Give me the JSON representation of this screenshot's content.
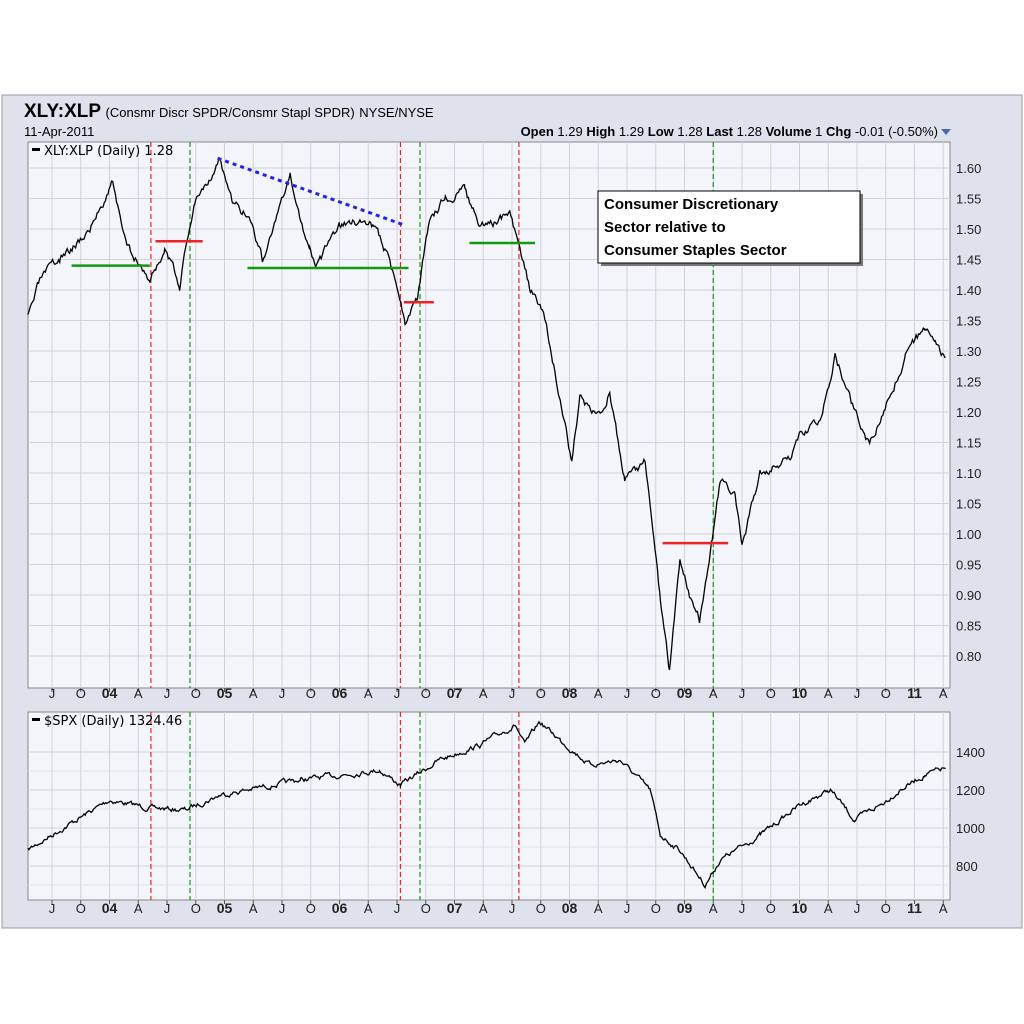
{
  "header": {
    "symbol": "XLY:XLP",
    "description": "(Consmr Discr SPDR/Consmr Stapl SPDR)",
    "exchange": "NYSE/NYSE",
    "date": "11-Apr-2011",
    "quote": [
      {
        "label": "Open",
        "value": "1.29"
      },
      {
        "label": "High",
        "value": "1.29"
      },
      {
        "label": "Low",
        "value": "1.28"
      },
      {
        "label": "Last",
        "value": "1.28"
      },
      {
        "label": "Volume",
        "value": "1"
      },
      {
        "label": "Chg",
        "value": "-0.01 (-0.50%)"
      }
    ],
    "dropdown_icon": "triangle-down"
  },
  "colors": {
    "red_line": "#ee2222",
    "green_line": "#119911",
    "blue_trend": "#2222ee",
    "panel_bg": "#dfe2ec",
    "plot_bg": "#f4f5fa"
  },
  "chart_data": [
    {
      "type": "line",
      "legend": "XLY:XLP (Daily) 1.28",
      "annotation": [
        "Consumer Discretionary",
        "Sector relative to",
        "Consumer Staples Sector"
      ],
      "ylim": [
        0.75,
        1.64
      ],
      "yticks": [
        "1.60",
        "1.55",
        "1.50",
        "1.45",
        "1.40",
        "1.35",
        "1.30",
        "1.25",
        "1.20",
        "1.15",
        "1.10",
        "1.05",
        "1.00",
        "0.95",
        "0.90",
        "0.85",
        "0.80"
      ],
      "points": [
        [
          2003.29,
          1.354
        ],
        [
          2003.4,
          1.416
        ],
        [
          2003.57,
          1.45
        ],
        [
          2003.83,
          1.5
        ],
        [
          2004.03,
          1.58
        ],
        [
          2004.13,
          1.48
        ],
        [
          2004.35,
          1.416
        ],
        [
          2004.48,
          1.466
        ],
        [
          2004.61,
          1.408
        ],
        [
          2004.74,
          1.548
        ],
        [
          2004.96,
          1.613
        ],
        [
          2005.07,
          1.54
        ],
        [
          2005.22,
          1.52
        ],
        [
          2005.33,
          1.45
        ],
        [
          2005.57,
          1.58
        ],
        [
          2005.74,
          1.466
        ],
        [
          2005.81,
          1.44
        ],
        [
          2006.0,
          1.507
        ],
        [
          2006.27,
          1.515
        ],
        [
          2006.44,
          1.45
        ],
        [
          2006.57,
          1.35
        ],
        [
          2006.68,
          1.384
        ],
        [
          2006.79,
          1.523
        ],
        [
          2006.92,
          1.548
        ],
        [
          2007.09,
          1.564
        ],
        [
          2007.22,
          1.5
        ],
        [
          2007.48,
          1.523
        ],
        [
          2007.57,
          1.466
        ],
        [
          2007.66,
          1.4
        ],
        [
          2007.79,
          1.35
        ],
        [
          2007.92,
          1.22
        ],
        [
          2008.02,
          1.12
        ],
        [
          2008.09,
          1.22
        ],
        [
          2008.27,
          1.187
        ],
        [
          2008.35,
          1.236
        ],
        [
          2008.48,
          1.09
        ],
        [
          2008.66,
          1.12
        ],
        [
          2008.79,
          0.892
        ],
        [
          2008.87,
          0.774
        ],
        [
          2008.96,
          0.957
        ],
        [
          2009.05,
          0.892
        ],
        [
          2009.13,
          0.859
        ],
        [
          2009.24,
          0.99
        ],
        [
          2009.31,
          1.09
        ],
        [
          2009.44,
          1.06
        ],
        [
          2009.5,
          0.98
        ],
        [
          2009.66,
          1.105
        ],
        [
          2009.92,
          1.12
        ],
        [
          2010.0,
          1.154
        ],
        [
          2010.18,
          1.187
        ],
        [
          2010.31,
          1.29
        ],
        [
          2010.44,
          1.22
        ],
        [
          2010.61,
          1.146
        ],
        [
          2010.79,
          1.228
        ],
        [
          2010.92,
          1.29
        ],
        [
          2011.09,
          1.34
        ],
        [
          2011.18,
          1.31
        ],
        [
          2011.27,
          1.29
        ]
      ],
      "support_lines": [
        {
          "color": "green",
          "x": [
            2003.67,
            2004.35
          ],
          "y": 1.44
        },
        {
          "color": "red",
          "x": [
            2004.4,
            2004.81
          ],
          "y": 1.48
        },
        {
          "color": "green",
          "x": [
            2005.2,
            2006.6
          ],
          "y": 1.436
        },
        {
          "color": "red",
          "x": [
            2006.56,
            2006.82
          ],
          "y": 1.38
        },
        {
          "color": "green",
          "x": [
            2007.13,
            2007.7
          ],
          "y": 1.477
        },
        {
          "color": "red",
          "x": [
            2008.81,
            2009.38
          ],
          "y": 0.985
        }
      ],
      "trend_line": {
        "x": [
          2004.94,
          2006.57
        ],
        "y": [
          1.616,
          1.506
        ]
      }
    },
    {
      "type": "line",
      "legend": "$SPX (Daily) 1324.46",
      "ylim": [
        650,
        1560
      ],
      "yticks": [
        "1400",
        "1200",
        "1000",
        "800"
      ],
      "points": [
        [
          2003.29,
          884
        ],
        [
          2003.57,
          990
        ],
        [
          2004.0,
          1147
        ],
        [
          2004.35,
          1105
        ],
        [
          2004.66,
          1095
        ],
        [
          2004.96,
          1174
        ],
        [
          2005.66,
          1253
        ],
        [
          2006.35,
          1305
        ],
        [
          2006.53,
          1226
        ],
        [
          2006.87,
          1358
        ],
        [
          2007.22,
          1437
        ],
        [
          2007.53,
          1542
        ],
        [
          2007.61,
          1437
        ],
        [
          2007.74,
          1558
        ],
        [
          2007.92,
          1463
        ],
        [
          2008.18,
          1332
        ],
        [
          2008.44,
          1358
        ],
        [
          2008.7,
          1200
        ],
        [
          2008.79,
          963
        ],
        [
          2008.96,
          884
        ],
        [
          2009.18,
          700
        ],
        [
          2009.31,
          832
        ],
        [
          2009.66,
          963
        ],
        [
          2010.0,
          1121
        ],
        [
          2010.27,
          1200
        ],
        [
          2010.48,
          1042
        ],
        [
          2010.7,
          1121
        ],
        [
          2010.87,
          1200
        ],
        [
          2011.09,
          1279
        ],
        [
          2011.27,
          1316
        ]
      ]
    }
  ],
  "x_axis": {
    "labels": [
      "J",
      "O",
      "04",
      "A",
      "J",
      "O",
      "05",
      "A",
      "J",
      "O",
      "06",
      "A",
      "J",
      "O",
      "07",
      "A",
      "J",
      "O",
      "08",
      "A",
      "J",
      "O",
      "09",
      "A",
      "J",
      "O",
      "10",
      "A",
      "J",
      "O",
      "11",
      "A"
    ],
    "start": 2003.5,
    "step": 0.25
  },
  "signal_lines": [
    {
      "color": "red",
      "x": 2004.36
    },
    {
      "color": "green",
      "x": 2004.7
    },
    {
      "color": "red",
      "x": 2006.53
    },
    {
      "color": "green",
      "x": 2006.7
    },
    {
      "color": "red",
      "x": 2007.56
    },
    {
      "color": "green",
      "x": 2009.25
    }
  ]
}
